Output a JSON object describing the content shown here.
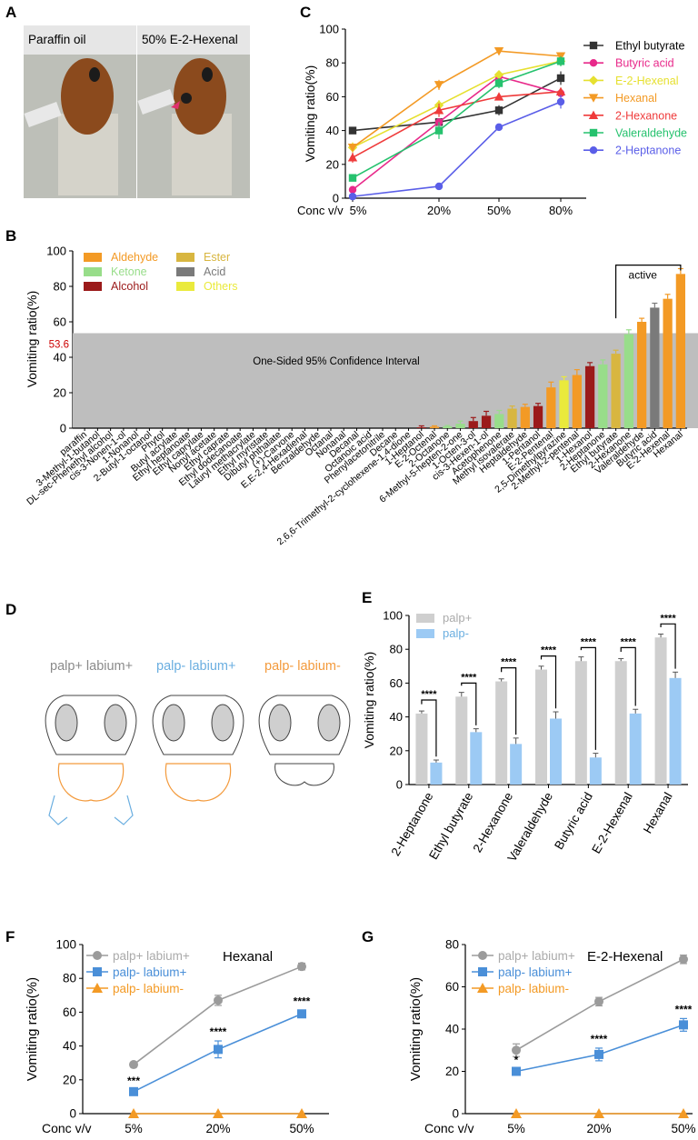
{
  "panel_labels": [
    "A",
    "B",
    "C",
    "D",
    "E",
    "F",
    "G"
  ],
  "photo": {
    "left_caption": "Paraffin oil",
    "right_caption": "50% E-2-Hexenal"
  },
  "diagram": {
    "captions": [
      "palp+ labium+",
      "palp- labium+",
      "palp- labium-"
    ],
    "caption_colors": [
      "#8a8a8a",
      "#6aaee0",
      "#f39a3c"
    ]
  },
  "chart_data": [
    {
      "id": "C",
      "type": "line",
      "title": "",
      "xlabel": "Conc v/v",
      "ylabel": "Vomiting ratio(%)",
      "categories": [
        "5%",
        "20%",
        "50%",
        "80%"
      ],
      "ylim": [
        0,
        100
      ],
      "yticks": [
        0,
        20,
        40,
        60,
        80,
        100
      ],
      "series": [
        {
          "name": "Ethyl butyrate",
          "color": "#333333",
          "marker": "square",
          "values": [
            40,
            45,
            52,
            71
          ],
          "errors": [
            2,
            2,
            3,
            4
          ]
        },
        {
          "name": "Butyric acid",
          "color": "#e8298a",
          "marker": "circle",
          "values": [
            5,
            45,
            72,
            62
          ],
          "errors": [
            1,
            2,
            3,
            2
          ]
        },
        {
          "name": "E-2-Hexenal",
          "color": "#e6e030",
          "marker": "diamond",
          "values": [
            30,
            55,
            73,
            81
          ],
          "errors": [
            3,
            3,
            2,
            2
          ]
        },
        {
          "name": "Hexanal",
          "color": "#f39a25",
          "marker": "triangle-down",
          "values": [
            30,
            67,
            87,
            84
          ],
          "errors": [
            2,
            3,
            2,
            2
          ]
        },
        {
          "name": "2-Hexanone",
          "color": "#ef3b3b",
          "marker": "triangle-up",
          "values": [
            24,
            52,
            60,
            63
          ],
          "errors": [
            3,
            4,
            2,
            2
          ]
        },
        {
          "name": "Valeraldehyde",
          "color": "#26c26e",
          "marker": "square",
          "values": [
            12,
            40,
            68,
            81
          ],
          "errors": [
            2,
            5,
            3,
            3
          ]
        },
        {
          "name": "2-Heptanone",
          "color": "#5a5ee8",
          "marker": "circle",
          "values": [
            1,
            7,
            42,
            57
          ],
          "errors": [
            1,
            1,
            1,
            4
          ]
        }
      ]
    },
    {
      "id": "B",
      "type": "bar",
      "ylabel": "Vomiting ratio(%)",
      "ylim": [
        0,
        100
      ],
      "yticks": [
        0,
        20,
        40,
        60,
        80,
        100
      ],
      "threshold": 53.6,
      "threshold_label": "53.6",
      "threshold_color": "#cc0000",
      "ci_label": "One-Sided 95% Confidence Interval",
      "active_label": "active",
      "legend": [
        {
          "name": "Aldehyde",
          "color": "#f39a25"
        },
        {
          "name": "Ketone",
          "color": "#98dd8a"
        },
        {
          "name": "Alcohol",
          "color": "#9b1a1a"
        },
        {
          "name": "Ester",
          "color": "#d8b640"
        },
        {
          "name": "Acid",
          "color": "#7a7a7a"
        },
        {
          "name": "Others",
          "color": "#eaea3c"
        }
      ],
      "colors": {
        "Aldehyde": "#f39a25",
        "Ketone": "#98dd8a",
        "Alcohol": "#9b1a1a",
        "Ester": "#d8b640",
        "Acid": "#7a7a7a",
        "Others": "#eaea3c"
      },
      "categories": [
        "paraffin",
        "3-Methyl-1-butanol",
        "DL-sec-Phenethyl alcohol",
        "cis-3-Nonen-1-ol",
        "1-Nonanol",
        "2-Butyl-1-octanol",
        "Phytol",
        "Butyl acrylate",
        "Ethyl heptanoate",
        "Ethyl caprylate",
        "Nonyl acetate",
        "Ethyl caprate",
        "Ethyl dodecanoate",
        "Lauryl methacrylate",
        "Ethyl myristate",
        "Dibutyl phthalate",
        "(+)-Carvone",
        "E,E-2,4-Hexadienal",
        "Benzaldehyde",
        "Octanal",
        "Nonanal",
        "Decanal",
        "Octanoic acid",
        "Phenylacetonitrile",
        "Decane",
        "2,6,6-Trimethyl-2-cyclohexene-1,4-dione",
        "1-Heptanol",
        "E-2-Octenal",
        "2-Octanone",
        "6-Methyl-5-hepten-2-one",
        "1-Octen-3-ol",
        "cis-3-Hexen-1-ol",
        "Acetophenone",
        "Methyl isovalerate",
        "Heptaldehyde",
        "1-Pentanol",
        "E-2-Pentenal",
        "2,5-Dimethylpyrazine",
        "2-Methyl-2-pentenal",
        "1-Hexanol",
        "2-Heptanone",
        "Ethyl butyrate",
        "2-Hexanone",
        "Valeraldehyde",
        "Butyric acid",
        "E-2-Hexenal",
        "Hexanal"
      ],
      "groups": [
        "Others",
        "Alcohol",
        "Alcohol",
        "Alcohol",
        "Alcohol",
        "Alcohol",
        "Alcohol",
        "Ester",
        "Ester",
        "Ester",
        "Ester",
        "Ester",
        "Ester",
        "Ester",
        "Ester",
        "Ester",
        "Ketone",
        "Aldehyde",
        "Aldehyde",
        "Aldehyde",
        "Aldehyde",
        "Aldehyde",
        "Acid",
        "Others",
        "Others",
        "Ketone",
        "Alcohol",
        "Aldehyde",
        "Ketone",
        "Ketone",
        "Alcohol",
        "Alcohol",
        "Ketone",
        "Ester",
        "Aldehyde",
        "Alcohol",
        "Aldehyde",
        "Others",
        "Aldehyde",
        "Alcohol",
        "Ketone",
        "Ester",
        "Ketone",
        "Aldehyde",
        "Acid",
        "Aldehyde",
        "Aldehyde"
      ],
      "values": [
        0,
        0,
        0,
        0,
        0,
        0,
        0,
        0,
        0,
        0,
        0,
        0,
        0,
        0,
        0,
        0,
        0,
        0,
        0,
        0,
        0,
        0,
        0,
        0,
        0,
        0,
        0.5,
        0.8,
        1,
        2.5,
        4,
        7,
        8,
        11,
        12,
        12.5,
        23,
        27,
        30,
        35,
        36,
        42,
        53,
        60,
        68,
        73,
        87
      ],
      "errors": [
        0,
        0,
        0,
        0,
        0,
        0,
        0,
        0,
        0,
        0,
        0,
        0,
        0,
        0,
        0,
        0,
        0,
        0,
        0,
        0,
        0,
        0,
        0,
        0,
        0,
        0,
        0.8,
        0.5,
        0.5,
        1.5,
        2,
        2.5,
        2,
        1.5,
        1.5,
        1.5,
        3,
        2,
        3,
        2,
        2.5,
        2,
        2.5,
        2,
        2.5,
        2.5,
        3
      ]
    },
    {
      "id": "E",
      "type": "bar",
      "ylabel": "Vomiting ratio(%)",
      "ylim": [
        0,
        100
      ],
      "yticks": [
        0,
        20,
        40,
        60,
        80,
        100
      ],
      "categories": [
        "2-Heptanone",
        "Ethyl butyrate",
        "2-Hexanone",
        "Valeraldehyde",
        "Butyric acid",
        "E-2-Hexenal",
        "Hexanal"
      ],
      "significance": "****",
      "series": [
        {
          "name": "palp+",
          "color": "#cfcfcf",
          "values": [
            42,
            52,
            61,
            68,
            73,
            73,
            87
          ],
          "errors": [
            1.5,
            2.5,
            1.5,
            2,
            2.5,
            1.5,
            2
          ]
        },
        {
          "name": "palp-",
          "color": "#9ccaf4",
          "values": [
            13,
            31,
            24,
            39,
            16,
            42,
            63
          ],
          "errors": [
            1.5,
            2,
            3.5,
            4,
            2.5,
            2.5,
            3.5
          ]
        }
      ]
    },
    {
      "id": "F",
      "type": "line",
      "title": "Hexanal",
      "xlabel": "Conc v/v",
      "ylabel": "Vomiting ratio(%)",
      "categories": [
        "5%",
        "20%",
        "50%"
      ],
      "ylim": [
        0,
        100
      ],
      "yticks": [
        0,
        20,
        40,
        60,
        80,
        100
      ],
      "series": [
        {
          "name": "palp+ labium+",
          "color": "#9b9b9b",
          "marker": "circle",
          "values": [
            29,
            67,
            87
          ],
          "errors": [
            1,
            3,
            2
          ],
          "stars": [
            "",
            "",
            ""
          ]
        },
        {
          "name": "palp- labium+",
          "color": "#4a8fd8",
          "marker": "square",
          "values": [
            13,
            38,
            59
          ],
          "errors": [
            1,
            5,
            2
          ],
          "stars": [
            "***",
            "****",
            "****"
          ]
        },
        {
          "name": "palp- labium-",
          "color": "#f39a25",
          "marker": "triangle-up",
          "values": [
            0,
            0,
            0
          ],
          "errors": [
            0,
            0,
            0
          ],
          "stars": [
            "",
            "",
            ""
          ]
        }
      ]
    },
    {
      "id": "G",
      "type": "line",
      "title": "E-2-Hexenal",
      "xlabel": "Conc v/v",
      "ylabel": "Vomiting ratio(%)",
      "categories": [
        "5%",
        "20%",
        "50%"
      ],
      "ylim": [
        0,
        80
      ],
      "yticks": [
        0,
        20,
        40,
        60,
        80
      ],
      "series": [
        {
          "name": "palp+ labium+",
          "color": "#9b9b9b",
          "marker": "circle",
          "values": [
            30,
            53,
            73
          ],
          "errors": [
            3,
            2,
            2
          ],
          "stars": [
            "",
            "",
            ""
          ]
        },
        {
          "name": "palp- labium+",
          "color": "#4a8fd8",
          "marker": "square",
          "values": [
            20,
            28,
            42
          ],
          "errors": [
            1,
            3,
            3
          ],
          "stars": [
            "*",
            "****",
            "****"
          ]
        },
        {
          "name": "palp- labium-",
          "color": "#f39a25",
          "marker": "triangle-up",
          "values": [
            0,
            0,
            0
          ],
          "errors": [
            0,
            0,
            0
          ],
          "stars": [
            "",
            "",
            ""
          ]
        }
      ]
    }
  ]
}
